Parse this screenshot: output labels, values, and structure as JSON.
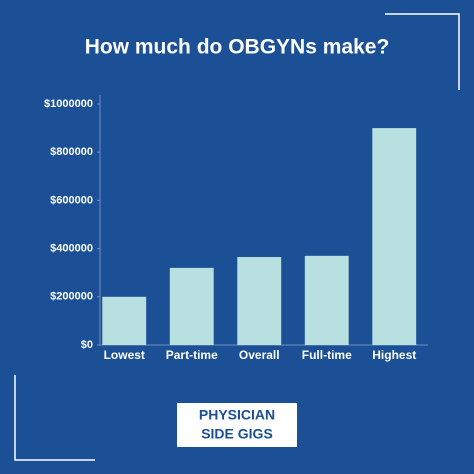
{
  "chart_data": {
    "type": "bar",
    "title": "How much do OBGYNs make?",
    "categories": [
      "Lowest",
      "Part-time",
      "Overall",
      "Full-time",
      "Highest"
    ],
    "values": [
      200000,
      320000,
      365000,
      370000,
      900000
    ],
    "color": "#b9e0e0",
    "ylim": [
      0,
      1000000
    ],
    "yticks": [
      {
        "value": 0,
        "label": "$0"
      },
      {
        "value": 200000,
        "label": "$200000"
      },
      {
        "value": 400000,
        "label": "$400000"
      },
      {
        "value": 600000,
        "label": "$600000"
      },
      {
        "value": 800000,
        "label": "$800000"
      },
      {
        "value": 1000000,
        "label": "$1000000"
      }
    ],
    "grid": false
  },
  "brand": [
    "PHYSICIAN",
    "SIDE GIGS"
  ]
}
